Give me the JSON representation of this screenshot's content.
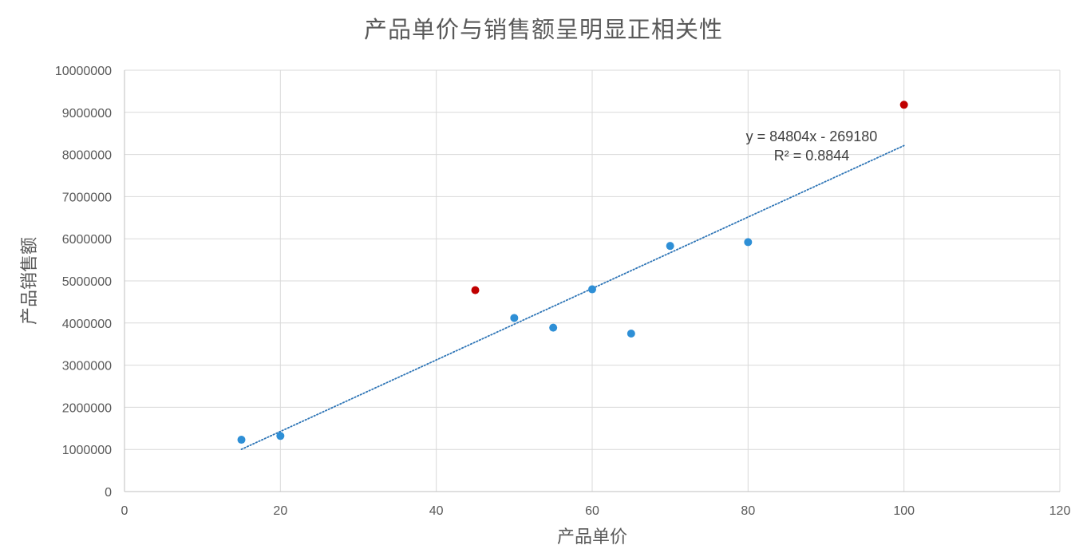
{
  "chart_data": {
    "type": "scatter",
    "title": "产品单价与销售额呈明显正相关性",
    "xlabel": "产品单价",
    "ylabel": "产品销售额",
    "xlim": [
      0,
      120
    ],
    "ylim": [
      0,
      10000000
    ],
    "x_ticks": [
      0,
      20,
      40,
      60,
      80,
      100,
      120
    ],
    "y_ticks": [
      0,
      1000000,
      2000000,
      3000000,
      4000000,
      5000000,
      6000000,
      7000000,
      8000000,
      9000000,
      10000000
    ],
    "grid": true,
    "legend": "none",
    "points": [
      {
        "x": 15,
        "y": 1230000,
        "color": "#2E8FD6"
      },
      {
        "x": 20,
        "y": 1320000,
        "color": "#2E8FD6"
      },
      {
        "x": 45,
        "y": 4780000,
        "color": "#C00000"
      },
      {
        "x": 50,
        "y": 4120000,
        "color": "#2E8FD6"
      },
      {
        "x": 55,
        "y": 3890000,
        "color": "#2E8FD6"
      },
      {
        "x": 60,
        "y": 4800000,
        "color": "#2E8FD6"
      },
      {
        "x": 65,
        "y": 3750000,
        "color": "#2E8FD6"
      },
      {
        "x": 70,
        "y": 5830000,
        "color": "#2E8FD6"
      },
      {
        "x": 80,
        "y": 5920000,
        "color": "#2E8FD6"
      },
      {
        "x": 100,
        "y": 9180000,
        "color": "#C00000"
      }
    ],
    "trendline": {
      "type": "linear",
      "slope": 84804,
      "intercept": -269180,
      "x_range": [
        15,
        100
      ],
      "color": "#2E75B6",
      "style": "dotted",
      "equation_label": "y = 84804x - 269180",
      "r2_label": "R² = 0.8844"
    }
  }
}
